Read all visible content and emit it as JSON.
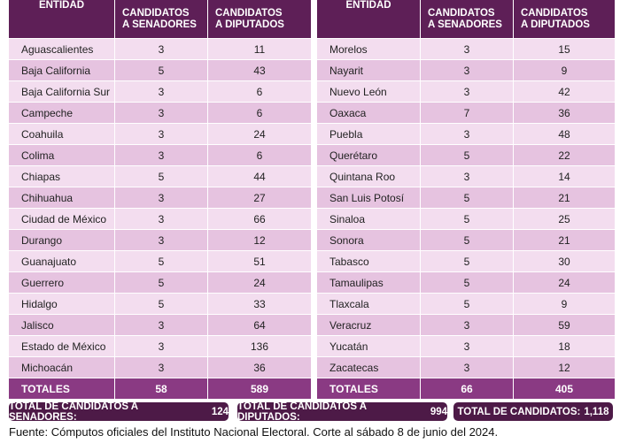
{
  "tables": [
    {
      "header": [
        [
          "ENTIDAD"
        ],
        [
          "CANDIDATOS",
          "A SENADORES"
        ],
        [
          "CANDIDATOS",
          "A DIPUTADOS"
        ]
      ],
      "rows": [
        [
          "Aguascalientes",
          3,
          11
        ],
        [
          "Baja California",
          5,
          43
        ],
        [
          "Baja California Sur",
          3,
          6
        ],
        [
          "Campeche",
          3,
          6
        ],
        [
          "Coahuila",
          3,
          24
        ],
        [
          "Colima",
          3,
          6
        ],
        [
          "Chiapas",
          5,
          44
        ],
        [
          "Chihuahua",
          3,
          27
        ],
        [
          "Ciudad de México",
          3,
          66
        ],
        [
          "Durango",
          3,
          12
        ],
        [
          "Guanajuato",
          5,
          51
        ],
        [
          "Guerrero",
          5,
          24
        ],
        [
          "Hidalgo",
          5,
          33
        ],
        [
          "Jalisco",
          3,
          64
        ],
        [
          "Estado de México",
          3,
          136
        ],
        [
          "Michoacán",
          3,
          36
        ]
      ],
      "totals": [
        "TOTALES",
        58,
        589
      ]
    },
    {
      "header": [
        [
          "ENTIDAD"
        ],
        [
          "CANDIDATOS",
          "A SENADORES"
        ],
        [
          "CANDIDATOS",
          "A DIPUTADOS"
        ]
      ],
      "rows": [
        [
          "Morelos",
          3,
          15
        ],
        [
          "Nayarit",
          3,
          9
        ],
        [
          "Nuevo León",
          3,
          42
        ],
        [
          "Oaxaca",
          7,
          36
        ],
        [
          "Puebla",
          3,
          48
        ],
        [
          "Querétaro",
          5,
          22
        ],
        [
          "Quintana Roo",
          3,
          14
        ],
        [
          "San Luis Potosí",
          5,
          21
        ],
        [
          "Sinaloa",
          5,
          25
        ],
        [
          "Sonora",
          5,
          21
        ],
        [
          "Tabasco",
          5,
          30
        ],
        [
          "Tamaulipas",
          5,
          24
        ],
        [
          "Tlaxcala",
          5,
          9
        ],
        [
          "Veracruz",
          3,
          59
        ],
        [
          "Yucatán",
          3,
          18
        ],
        [
          "Zacatecas",
          3,
          12
        ]
      ],
      "totals": [
        "TOTALES",
        66,
        405
      ]
    }
  ],
  "summary": [
    {
      "label": "TOTAL DE CANDIDATOS A SENADORES:",
      "value": 124
    },
    {
      "label": "TOTAL DE CANDIDATOS A DIPUTADOS:",
      "value": 994
    },
    {
      "label": "TOTAL DE CANDIDATOS:",
      "value": "1,118"
    }
  ],
  "source": "Fuente: Cómputos oficiales del Instituto Nacional Electoral. Corte al sábado 8 de junio del 2024."
}
